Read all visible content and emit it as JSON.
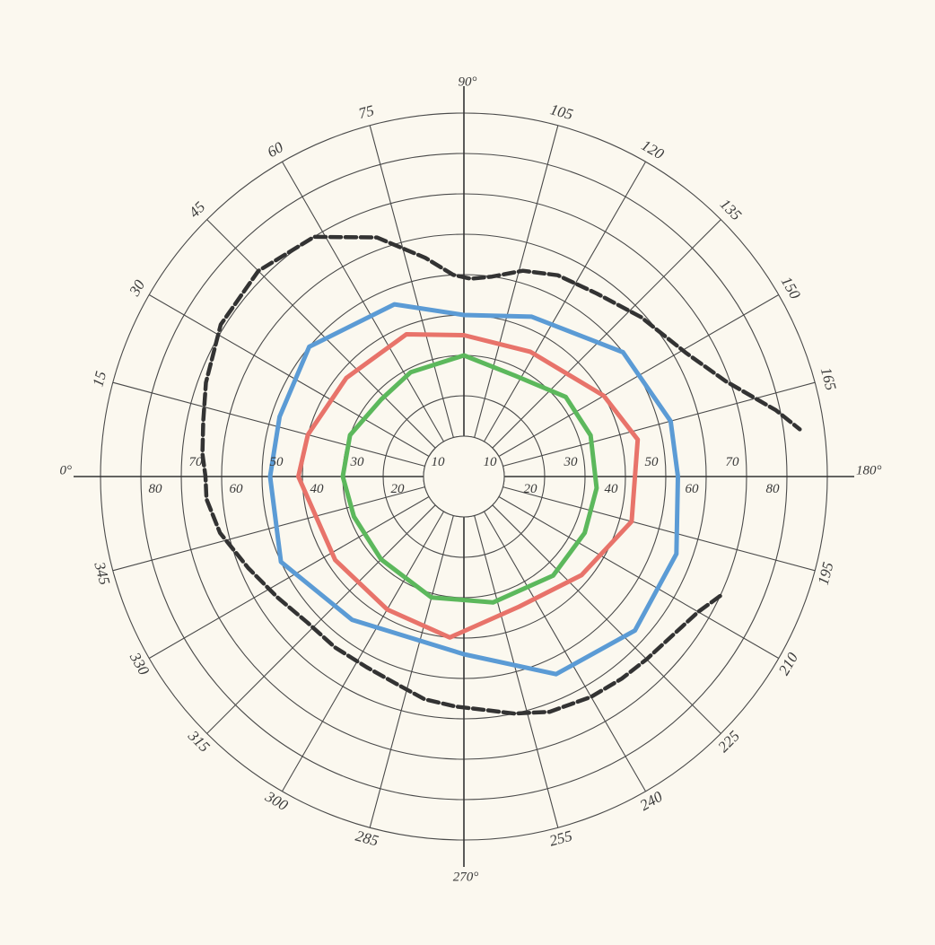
{
  "chart_data": {
    "type": "polar-line",
    "title": "",
    "angle_unit": "degrees",
    "angle_direction": "clockwise",
    "angle_zero_position": "left",
    "axis_labels": {
      "0": "0°",
      "90": "90°",
      "180": "180°",
      "270": "270°"
    },
    "angle_ticks": [
      {
        "angle": 15,
        "label": "15"
      },
      {
        "angle": 30,
        "label": "30"
      },
      {
        "angle": 45,
        "label": "45"
      },
      {
        "angle": 60,
        "label": "60"
      },
      {
        "angle": 75,
        "label": "75"
      },
      {
        "angle": 105,
        "label": "105"
      },
      {
        "angle": 120,
        "label": "120"
      },
      {
        "angle": 135,
        "label": "135"
      },
      {
        "angle": 150,
        "label": "150"
      },
      {
        "angle": 165,
        "label": "165"
      },
      {
        "angle": 195,
        "label": "195"
      },
      {
        "angle": 210,
        "label": "210"
      },
      {
        "angle": 225,
        "label": "225"
      },
      {
        "angle": 240,
        "label": "240"
      },
      {
        "angle": 255,
        "label": "255"
      },
      {
        "angle": 285,
        "label": "285"
      },
      {
        "angle": 300,
        "label": "300"
      },
      {
        "angle": 315,
        "label": "315"
      },
      {
        "angle": 330,
        "label": "330"
      },
      {
        "angle": 345,
        "label": "345"
      }
    ],
    "radial_rings": [
      10,
      20,
      30,
      40,
      50,
      60,
      70,
      80,
      90
    ],
    "radial_range": [
      0,
      90
    ],
    "radial_tick_labels": [
      {
        "value": 10,
        "side": "left",
        "label": "10"
      },
      {
        "value": 20,
        "side": "left",
        "label": "20"
      },
      {
        "value": 30,
        "side": "left",
        "label": "30"
      },
      {
        "value": 40,
        "side": "left",
        "label": "40"
      },
      {
        "value": 50,
        "side": "left",
        "label": "50"
      },
      {
        "value": 60,
        "side": "left",
        "label": "60"
      },
      {
        "value": 70,
        "side": "left",
        "label": "70"
      },
      {
        "value": 80,
        "side": "left",
        "label": "80"
      },
      {
        "value": 10,
        "side": "right",
        "label": "10"
      },
      {
        "value": 20,
        "side": "right",
        "label": "20"
      },
      {
        "value": 30,
        "side": "right",
        "label": "30"
      },
      {
        "value": 40,
        "side": "right",
        "label": "40"
      },
      {
        "value": 50,
        "side": "right",
        "label": "50"
      },
      {
        "value": 60,
        "side": "right",
        "label": "60"
      },
      {
        "value": 70,
        "side": "right",
        "label": "70"
      },
      {
        "value": 80,
        "side": "right",
        "label": "80"
      }
    ],
    "grid": true,
    "legend": "none",
    "series": [
      {
        "color": "#333333",
        "style": "dashed",
        "closed": false,
        "points": [
          [
            205,
            70
          ],
          [
            210,
            67
          ],
          [
            217,
            65
          ],
          [
            225,
            64
          ],
          [
            232,
            63.5
          ],
          [
            240,
            63
          ],
          [
            250,
            62
          ],
          [
            258,
            60
          ],
          [
            265,
            58
          ],
          [
            272,
            57
          ],
          [
            280,
            56
          ],
          [
            288,
            54
          ],
          [
            297,
            53
          ],
          [
            307,
            53
          ],
          [
            317,
            53
          ],
          [
            327,
            55
          ],
          [
            337,
            58
          ],
          [
            347,
            62
          ],
          [
            355,
            64
          ],
          [
            0,
            64
          ],
          [
            5,
            65
          ],
          [
            12,
            66
          ],
          [
            20,
            68
          ],
          [
            32,
            71
          ],
          [
            45,
            72
          ],
          [
            58,
            70
          ],
          [
            70,
            63
          ],
          [
            80,
            55
          ],
          [
            87,
            50
          ],
          [
            92,
            49
          ],
          [
            98,
            50
          ],
          [
            106,
            53
          ],
          [
            115,
            55
          ],
          [
            126,
            56
          ],
          [
            138,
            59
          ],
          [
            151,
            63
          ],
          [
            160,
            69
          ],
          [
            168,
            79
          ],
          [
            172,
            84
          ]
        ]
      },
      {
        "color": "#5b9bd5",
        "style": "solid",
        "closed": true,
        "points": [
          [
            0,
            48
          ],
          [
            18,
            48
          ],
          [
            40,
            50
          ],
          [
            68,
            46
          ],
          [
            90,
            40
          ],
          [
            113,
            43
          ],
          [
            142,
            50
          ],
          [
            165,
            53
          ],
          [
            180,
            53
          ],
          [
            200,
            56
          ],
          [
            222,
            57
          ],
          [
            245,
            54
          ],
          [
            270,
            44
          ],
          [
            308,
            45
          ],
          [
            335,
            50
          ]
        ]
      },
      {
        "color": "#e8736a",
        "style": "solid",
        "closed": true,
        "points": [
          [
            0,
            41
          ],
          [
            15,
            40
          ],
          [
            40,
            38
          ],
          [
            68,
            38
          ],
          [
            90,
            35
          ],
          [
            118,
            35
          ],
          [
            150,
            40
          ],
          [
            168,
            44
          ],
          [
            195,
            43
          ],
          [
            220,
            38
          ],
          [
            247,
            35
          ],
          [
            275,
            40
          ],
          [
            300,
            38
          ],
          [
            327,
            38
          ]
        ]
      },
      {
        "color": "#5cb85c",
        "style": "solid",
        "closed": true,
        "points": [
          [
            0,
            30
          ],
          [
            20,
            30
          ],
          [
            43,
            28
          ],
          [
            63,
            29
          ],
          [
            90,
            30
          ],
          [
            117,
            28
          ],
          [
            142,
            32
          ],
          [
            162,
            33
          ],
          [
            185,
            33
          ],
          [
            205,
            33
          ],
          [
            228,
            33
          ],
          [
            257,
            32
          ],
          [
            285,
            31
          ],
          [
            315,
            29
          ],
          [
            340,
            29
          ]
        ]
      }
    ]
  }
}
